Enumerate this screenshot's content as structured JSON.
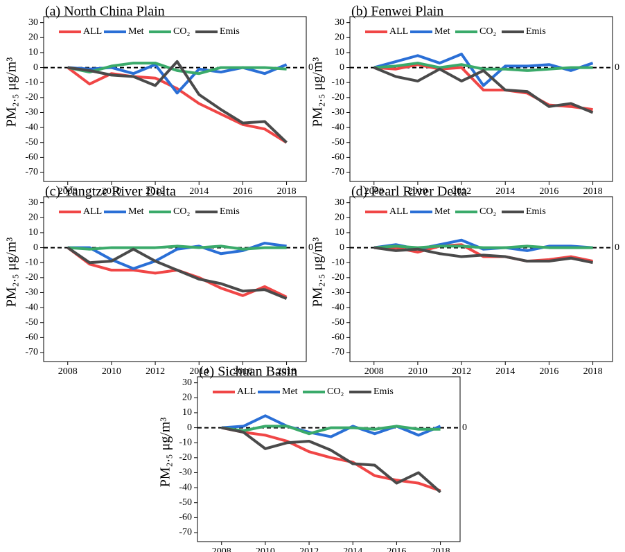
{
  "chart_data": [
    {
      "type": "line",
      "title": "(a) North China Plain",
      "ylabel": "PM₂.₅ μg/m³",
      "x": [
        2008,
        2009,
        2010,
        2011,
        2012,
        2013,
        2014,
        2015,
        2016,
        2017,
        2018
      ],
      "xlim": [
        2006.9,
        2018.9
      ],
      "xticks": [
        2008,
        2010,
        2012,
        2014,
        2016,
        2018
      ],
      "ylim": [
        -76,
        34
      ],
      "yticks": [
        -70,
        -60,
        -50,
        -40,
        -30,
        -20,
        -10,
        0,
        10,
        20,
        30
      ],
      "reference_line": 0,
      "series": [
        {
          "name": "ALL",
          "color": "#f04646",
          "values": [
            0,
            -11,
            -4,
            -6,
            -7,
            -14,
            -24,
            -31,
            -38,
            -41,
            -50
          ]
        },
        {
          "name": "Met",
          "color": "#2a6fd6",
          "values": [
            0,
            -1,
            0,
            -4,
            2,
            -17,
            -1,
            -3,
            0,
            -4,
            2
          ]
        },
        {
          "name": "CO₂",
          "color": "#3aaa6a",
          "values": [
            0,
            -3,
            1,
            3,
            3,
            -2,
            -4,
            0,
            0,
            0,
            -1
          ]
        },
        {
          "name": "Emis",
          "color": "#4a4a4a",
          "values": [
            0,
            -2,
            -5,
            -6,
            -12,
            4,
            -18,
            -28,
            -37,
            -36,
            -50
          ]
        }
      ]
    },
    {
      "type": "line",
      "title": "(b) Fenwei Plain",
      "ylabel": "PM₂.₅ μg/m³",
      "x": [
        2008,
        2009,
        2010,
        2011,
        2012,
        2013,
        2014,
        2015,
        2016,
        2017,
        2018
      ],
      "xlim": [
        2006.9,
        2018.9
      ],
      "xticks": [
        2008,
        2010,
        2012,
        2014,
        2016,
        2018
      ],
      "ylim": [
        -76,
        34
      ],
      "yticks": [
        -70,
        -60,
        -50,
        -40,
        -30,
        -20,
        -10,
        0,
        10,
        20,
        30
      ],
      "reference_line": 0,
      "series": [
        {
          "name": "ALL",
          "color": "#f04646",
          "values": [
            0,
            -1,
            2,
            -1,
            0,
            -15,
            -15,
            -17,
            -25,
            -26,
            -28
          ]
        },
        {
          "name": "Met",
          "color": "#2a6fd6",
          "values": [
            0,
            4,
            8,
            3,
            9,
            -12,
            1,
            1,
            2,
            -2,
            3
          ]
        },
        {
          "name": "CO₂",
          "color": "#3aaa6a",
          "values": [
            0,
            1,
            3,
            0,
            2,
            -1,
            -1,
            -2,
            -1,
            0,
            0
          ]
        },
        {
          "name": "Emis",
          "color": "#4a4a4a",
          "values": [
            0,
            -6,
            -9,
            -1,
            -9,
            -2,
            -15,
            -16,
            -26,
            -24,
            -30
          ]
        }
      ]
    },
    {
      "type": "line",
      "title": "(c) Yangtze River Delta",
      "ylabel": "PM₂.₅ μg/m³",
      "x": [
        2008,
        2009,
        2010,
        2011,
        2012,
        2013,
        2014,
        2015,
        2016,
        2017,
        2018
      ],
      "xlim": [
        2006.9,
        2018.9
      ],
      "xticks": [
        2008,
        2010,
        2012,
        2014,
        2016,
        2018
      ],
      "ylim": [
        -76,
        34
      ],
      "yticks": [
        -70,
        -60,
        -50,
        -40,
        -30,
        -20,
        -10,
        0,
        10,
        20,
        30
      ],
      "reference_line": 0,
      "series": [
        {
          "name": "ALL",
          "color": "#f04646",
          "values": [
            0,
            -11,
            -15,
            -15,
            -17,
            -15,
            -20,
            -27,
            -32,
            -26,
            -33
          ]
        },
        {
          "name": "Met",
          "color": "#2a6fd6",
          "values": [
            0,
            0,
            -8,
            -14,
            -9,
            -1,
            1,
            -4,
            -2,
            3,
            1
          ]
        },
        {
          "name": "CO₂",
          "color": "#3aaa6a",
          "values": [
            0,
            -1,
            0,
            0,
            0,
            1,
            0,
            1,
            -1,
            0,
            0
          ]
        },
        {
          "name": "Emis",
          "color": "#4a4a4a",
          "values": [
            0,
            -10,
            -9,
            -1,
            -9,
            -15,
            -21,
            -24,
            -29,
            -28,
            -34
          ]
        }
      ]
    },
    {
      "type": "line",
      "title": "(d) Pearl River Delta",
      "ylabel": "PM₂.₅ μg/m³",
      "x": [
        2008,
        2009,
        2010,
        2011,
        2012,
        2013,
        2014,
        2015,
        2016,
        2017,
        2018
      ],
      "xlim": [
        2006.9,
        2018.9
      ],
      "xticks": [
        2008,
        2010,
        2012,
        2014,
        2016,
        2018
      ],
      "ylim": [
        -76,
        34
      ],
      "yticks": [
        -70,
        -60,
        -50,
        -40,
        -30,
        -20,
        -10,
        0,
        10,
        20,
        30
      ],
      "reference_line": 0,
      "series": [
        {
          "name": "ALL",
          "color": "#f04646",
          "values": [
            0,
            0,
            -3,
            1,
            2,
            -6,
            -6,
            -9,
            -8,
            -6,
            -9
          ]
        },
        {
          "name": "Met",
          "color": "#2a6fd6",
          "values": [
            0,
            2,
            -1,
            2,
            5,
            -1,
            0,
            -2,
            1,
            1,
            0
          ]
        },
        {
          "name": "CO₂",
          "color": "#3aaa6a",
          "values": [
            0,
            1,
            0,
            1,
            1,
            0,
            0,
            1,
            0,
            0,
            0
          ]
        },
        {
          "name": "Emis",
          "color": "#4a4a4a",
          "values": [
            0,
            -2,
            -1,
            -4,
            -6,
            -5,
            -6,
            -9,
            -9,
            -7,
            -10
          ]
        }
      ]
    },
    {
      "type": "line",
      "title": "(e) Sichuan Basin",
      "ylabel": "PM₂.₅ μg/m³",
      "x": [
        2008,
        2009,
        2010,
        2011,
        2012,
        2013,
        2014,
        2015,
        2016,
        2017,
        2018
      ],
      "xlim": [
        2006.9,
        2018.9
      ],
      "xticks": [
        2008,
        2010,
        2012,
        2014,
        2016,
        2018
      ],
      "ylim": [
        -76,
        34
      ],
      "yticks": [
        -70,
        -60,
        -50,
        -40,
        -30,
        -20,
        -10,
        0,
        10,
        20,
        30
      ],
      "reference_line": 0,
      "series": [
        {
          "name": "ALL",
          "color": "#f04646",
          "values": [
            0,
            -3,
            -5,
            -9,
            -16,
            -20,
            -23,
            -32,
            -35,
            -37,
            -42
          ]
        },
        {
          "name": "Met",
          "color": "#2a6fd6",
          "values": [
            0,
            1,
            8,
            1,
            -3,
            -6,
            1,
            -4,
            1,
            -5,
            1
          ]
        },
        {
          "name": "CO₂",
          "color": "#3aaa6a",
          "values": [
            0,
            -2,
            1,
            1,
            -4,
            0,
            0,
            -1,
            1,
            -1,
            -1
          ]
        },
        {
          "name": "Emis",
          "color": "#4a4a4a",
          "values": [
            0,
            -3,
            -14,
            -10,
            -9,
            -15,
            -24,
            -25,
            -37,
            -30,
            -43
          ]
        }
      ]
    }
  ]
}
